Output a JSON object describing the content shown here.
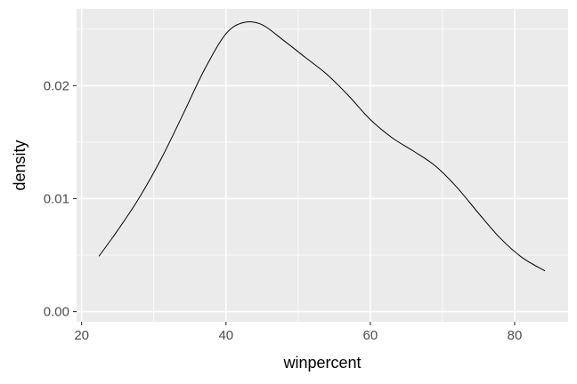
{
  "chart_data": {
    "type": "line",
    "title": "",
    "xlabel": "winpercent",
    "ylabel": "density",
    "xlim": [
      19.3,
      87.4
    ],
    "ylim": [
      -0.0009,
      0.0268
    ],
    "x_ticks": [
      20,
      40,
      60,
      80
    ],
    "x_tick_labels": [
      "20",
      "40",
      "60",
      "80"
    ],
    "y_ticks": [
      0.0,
      0.01,
      0.02
    ],
    "y_tick_labels": [
      "0.00",
      "0.01",
      "0.02"
    ],
    "grid": true,
    "legend": "none",
    "series": [
      {
        "x": [
          22.4,
          25,
          28,
          31,
          34,
          37,
          40,
          42.5,
          45,
          48,
          51,
          54,
          57,
          60,
          63,
          66,
          69,
          72,
          75,
          78,
          81,
          84.2
        ],
        "y": [
          0.0049,
          0.0072,
          0.0101,
          0.0135,
          0.0174,
          0.0214,
          0.0246,
          0.0256,
          0.0254,
          0.024,
          0.0225,
          0.021,
          0.0191,
          0.017,
          0.0154,
          0.0142,
          0.0129,
          0.011,
          0.0087,
          0.0065,
          0.0048,
          0.0036
        ],
        "color": "#000000"
      }
    ]
  }
}
